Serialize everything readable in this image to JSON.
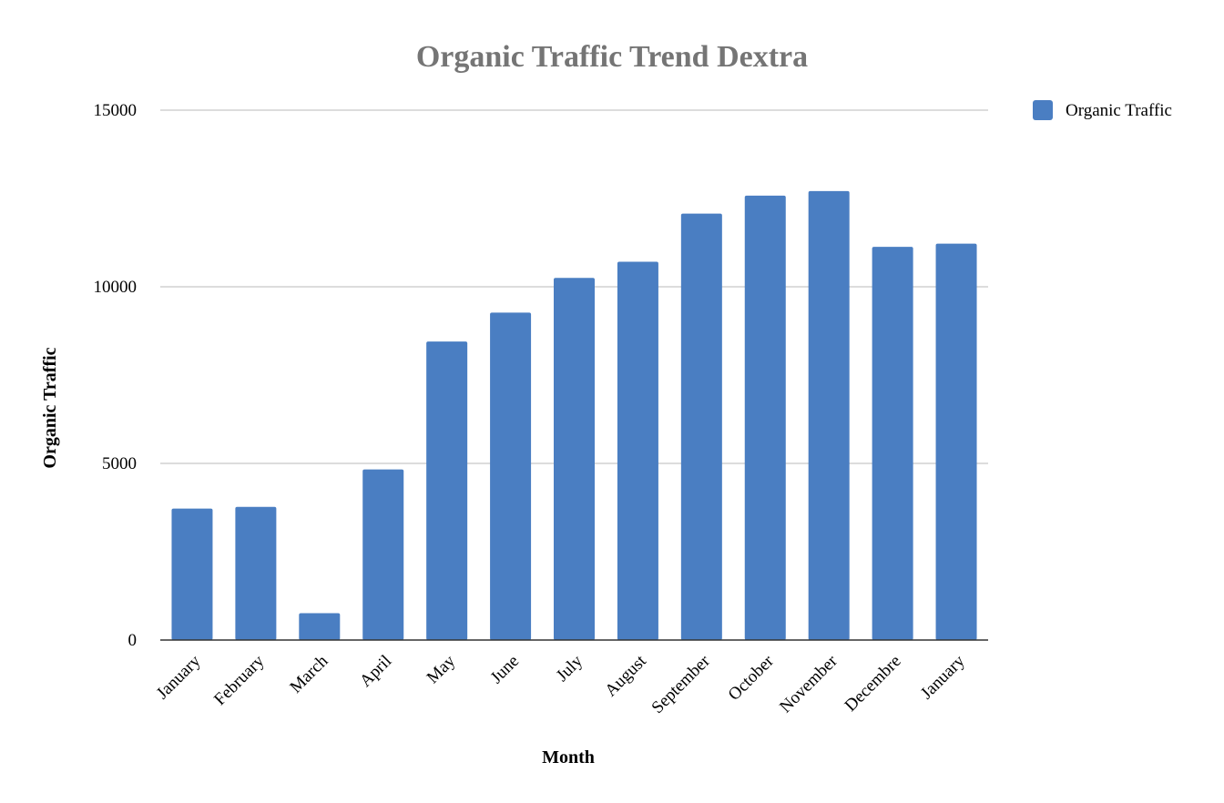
{
  "chart_data": {
    "type": "bar",
    "title": "Organic Traffic Trend Dextra",
    "xlabel": "Month",
    "ylabel": "Organic Traffic",
    "categories": [
      "January",
      "February",
      "March",
      "April",
      "May",
      "June",
      "July",
      "August",
      "September",
      "October",
      "November",
      "Decembre",
      "January"
    ],
    "series": [
      {
        "name": "Organic Traffic",
        "color": "#4a7ec2",
        "values": [
          3720,
          3770,
          760,
          4830,
          8450,
          9270,
          10250,
          10710,
          12070,
          12580,
          12710,
          11130,
          11220
        ]
      }
    ],
    "ylim": [
      0,
      15000
    ],
    "yticks": [
      0,
      5000,
      10000,
      15000
    ],
    "grid": true,
    "legend": "top-right"
  }
}
